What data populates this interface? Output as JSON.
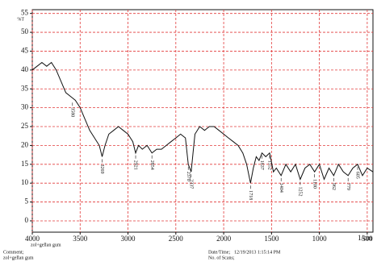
{
  "chart_data": {
    "type": "line",
    "ylabel": "%T",
    "xlabel": "1/cm",
    "sample": "zol+gellan gum",
    "comment_label": "Comment;",
    "comment": "zol+gellan gum",
    "date_label": "Date/Time;",
    "date": "12/19/2013 1:15:14 PM",
    "scans_label": "No. of Scans;",
    "xlim": [
      4000,
      440
    ],
    "ylim": [
      -3,
      56
    ],
    "xticks": [
      4000,
      3500,
      3000,
      2500,
      2000,
      1500,
      1000,
      500
    ],
    "yticks": [
      0,
      5,
      10,
      15,
      20,
      25,
      30,
      35,
      40,
      45,
      50,
      55
    ],
    "grid": true,
    "color": "#111111",
    "x": [
      4000,
      3950,
      3900,
      3850,
      3800,
      3750,
      3700,
      3650,
      3600,
      3550,
      3500,
      3450,
      3400,
      3350,
      3300,
      3270,
      3240,
      3200,
      3150,
      3100,
      3050,
      3000,
      2950,
      2920,
      2890,
      2850,
      2800,
      2750,
      2700,
      2650,
      2600,
      2550,
      2500,
      2450,
      2400,
      2370,
      2340,
      2320,
      2300,
      2250,
      2200,
      2150,
      2100,
      2050,
      2000,
      1950,
      1900,
      1850,
      1800,
      1760,
      1720,
      1690,
      1660,
      1630,
      1600,
      1560,
      1520,
      1480,
      1450,
      1400,
      1350,
      1300,
      1250,
      1200,
      1150,
      1100,
      1050,
      1000,
      950,
      900,
      850,
      800,
      750,
      700,
      650,
      600,
      550,
      500,
      440
    ],
    "values": [
      40,
      41,
      42,
      41,
      42,
      40,
      37,
      34,
      33,
      32,
      30,
      27,
      24,
      22,
      20,
      17,
      20,
      23,
      24,
      25,
      24,
      23,
      21,
      18,
      20,
      19,
      20,
      18,
      19,
      19,
      20,
      21,
      22,
      23,
      22,
      15,
      13,
      18,
      23,
      25,
      24,
      25,
      25,
      24,
      23,
      22,
      21,
      20,
      18,
      15,
      10,
      14,
      17,
      16,
      18,
      17,
      18,
      13,
      14,
      12,
      15,
      13,
      15,
      11,
      14,
      15,
      13,
      15,
      11,
      14,
      12,
      15,
      13,
      12,
      14,
      15,
      12,
      14,
      13
    ],
    "annotations": [
      {
        "x": 3580,
        "y": 32,
        "label": "3580"
      },
      {
        "x": 3270,
        "y": 17,
        "label": "3269"
      },
      {
        "x": 2920,
        "y": 18,
        "label": "2921"
      },
      {
        "x": 2750,
        "y": 18,
        "label": "2854"
      },
      {
        "x": 2370,
        "y": 15,
        "label": "2370"
      },
      {
        "x": 2340,
        "y": 13,
        "label": "2337"
      },
      {
        "x": 1720,
        "y": 10,
        "label": "1718"
      },
      {
        "x": 1600,
        "y": 18,
        "label": "1637"
      },
      {
        "x": 1520,
        "y": 18,
        "label": "1552"
      },
      {
        "x": 1400,
        "y": 12,
        "label": "1404"
      },
      {
        "x": 1200,
        "y": 11,
        "label": "1252"
      },
      {
        "x": 1050,
        "y": 13,
        "label": "1100"
      },
      {
        "x": 850,
        "y": 12,
        "label": "962"
      },
      {
        "x": 700,
        "y": 12,
        "label": "779"
      },
      {
        "x": 600,
        "y": 15,
        "label": "605"
      }
    ]
  }
}
